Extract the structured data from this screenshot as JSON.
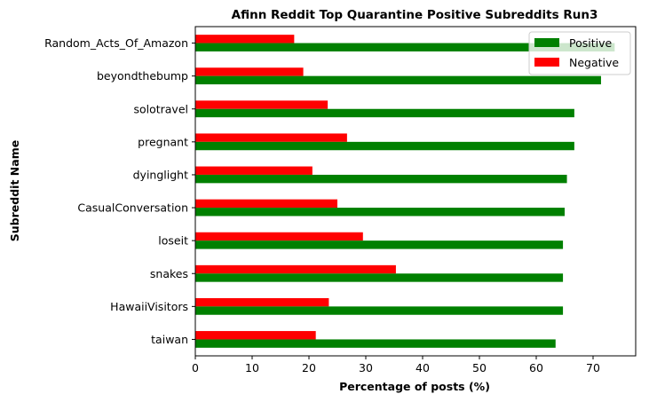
{
  "chart_data": {
    "type": "bar",
    "orientation": "horizontal",
    "title": "Afinn Reddit Top Quarantine Positive Subreddits Run3",
    "xlabel": "Percentage of posts (%)",
    "ylabel": "Subreddit Name",
    "xlim": [
      0,
      77.5
    ],
    "xticks": [
      "0",
      "10",
      "20",
      "30",
      "40",
      "50",
      "60",
      "70"
    ],
    "grid": false,
    "legend_position": "top-right",
    "categories": [
      "Random_Acts_Of_Amazon",
      "beyondthebump",
      "solotravel",
      "pregnant",
      "dyinglight",
      "CasualConversation",
      "loseit",
      "snakes",
      "HawaiiVisitors",
      "taiwan"
    ],
    "series": [
      {
        "name": "Positive",
        "color": "#008000",
        "values": [
          73.8,
          71.4,
          66.7,
          66.7,
          65.4,
          65.0,
          64.7,
          64.7,
          64.7,
          63.4
        ]
      },
      {
        "name": "Negative",
        "color": "#ff0000",
        "values": [
          17.4,
          19.0,
          23.3,
          26.7,
          20.6,
          25.0,
          29.5,
          35.3,
          23.5,
          21.2
        ]
      }
    ]
  }
}
